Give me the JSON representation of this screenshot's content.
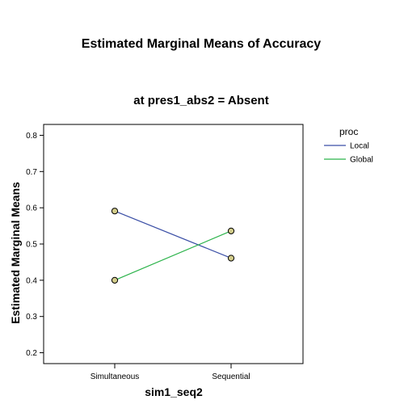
{
  "chart_data": {
    "type": "line",
    "title": "Estimated Marginal Means of Accuracy",
    "subtitle": "at pres1_abs2 = Absent",
    "xlabel": "sim1_seq2",
    "ylabel": "Estimated Marginal Means",
    "categories": [
      "Simultaneous",
      "Sequential"
    ],
    "ylim": [
      0.17,
      0.83
    ],
    "yticks": [
      0.2,
      0.3,
      0.4,
      0.5,
      0.6,
      0.7,
      0.8
    ],
    "legend_title": "proc",
    "legend_position": "right",
    "grid": false,
    "series": [
      {
        "name": "Local",
        "color": "#3b4fa6",
        "values": [
          0.591,
          0.461
        ]
      },
      {
        "name": "Global",
        "color": "#2bb34a",
        "values": [
          0.4,
          0.536
        ]
      }
    ],
    "marker_fill": "#d2cc8a",
    "marker_stroke": "#000000"
  }
}
